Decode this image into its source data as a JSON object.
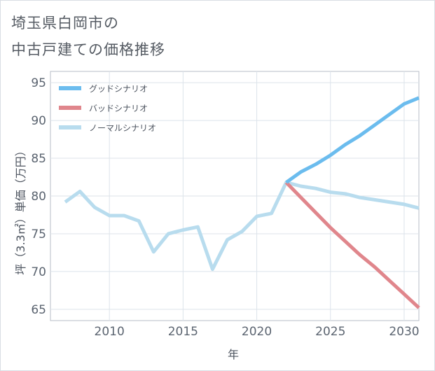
{
  "title": {
    "line1": "埼玉県白岡市の",
    "line2": "中古戸建ての価格推移"
  },
  "chart_data": {
    "type": "line",
    "xlabel": "年",
    "ylabel": "坪（3.3㎡）単価（万円）",
    "xlim": [
      2006,
      2031
    ],
    "ylim": [
      63.5,
      96.5
    ],
    "xticks": [
      2010,
      2015,
      2020,
      2025,
      2030
    ],
    "yticks": [
      65,
      70,
      75,
      80,
      85,
      90,
      95
    ],
    "grid": true,
    "legend_position": "top-left",
    "series": [
      {
        "name": "グッドシナリオ",
        "color": "#6bbcee",
        "x": [
          2022,
          2023,
          2024,
          2025,
          2026,
          2027,
          2028,
          2029,
          2030,
          2031
        ],
        "values": [
          81.8,
          83.2,
          84.2,
          85.4,
          86.8,
          88.0,
          89.4,
          90.8,
          92.2,
          93.0
        ]
      },
      {
        "name": "バッドシナリオ",
        "color": "#e0868c",
        "x": [
          2022,
          2023,
          2024,
          2025,
          2026,
          2027,
          2028,
          2029,
          2030,
          2031
        ],
        "values": [
          81.8,
          79.8,
          77.8,
          75.8,
          74.0,
          72.2,
          70.6,
          68.8,
          67.0,
          65.2
        ]
      },
      {
        "name": "ノーマルシナリオ",
        "color": "#b8dcee",
        "x": [
          2007,
          2008,
          2009,
          2010,
          2011,
          2012,
          2013,
          2014,
          2015,
          2016,
          2017,
          2018,
          2019,
          2020,
          2021,
          2022,
          2023,
          2024,
          2025,
          2026,
          2027,
          2028,
          2029,
          2030,
          2031
        ],
        "values": [
          79.2,
          80.6,
          78.5,
          77.4,
          77.4,
          76.7,
          72.6,
          75.0,
          75.5,
          75.9,
          70.3,
          74.2,
          75.3,
          77.3,
          77.7,
          81.8,
          81.3,
          81.0,
          80.5,
          80.3,
          79.8,
          79.5,
          79.2,
          78.9,
          78.4
        ]
      }
    ]
  }
}
